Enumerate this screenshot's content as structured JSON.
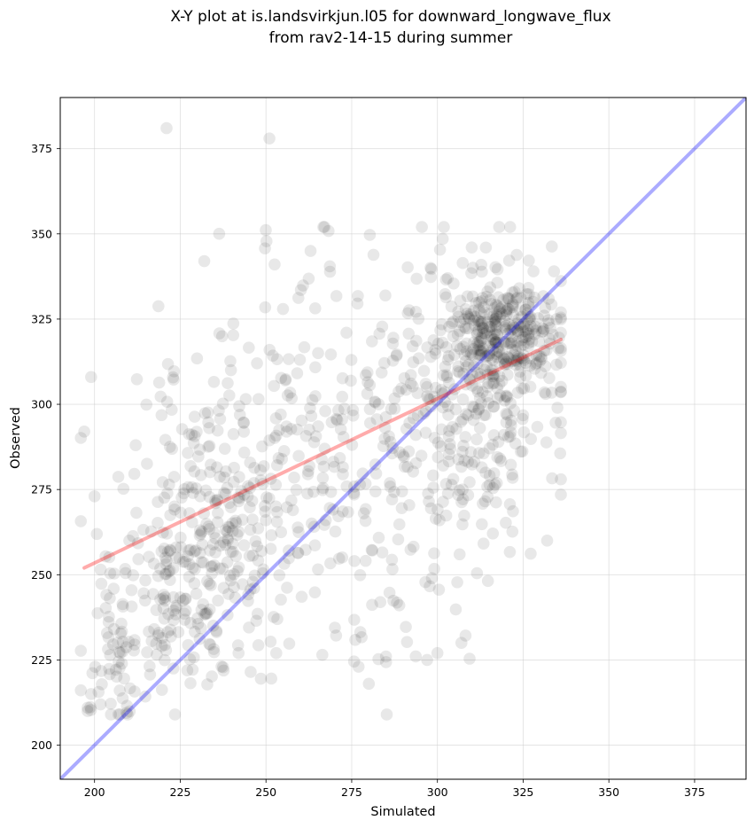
{
  "chart_data": {
    "type": "scatter",
    "title": "X-Y plot at is.landsvirkjun.l05 for downward_longwave_flux",
    "subtitle": "from rav2-14-15 during summer",
    "xlabel": "Simulated",
    "ylabel": "Observed",
    "xlim": [
      190,
      390
    ],
    "ylim": [
      190,
      390
    ],
    "xticks": [
      200,
      225,
      250,
      275,
      300,
      325,
      350,
      375
    ],
    "yticks": [
      200,
      225,
      250,
      275,
      300,
      325,
      350,
      375
    ],
    "grid": true,
    "point_color": "#000000",
    "one_to_one_line": {
      "x": [
        190,
        390
      ],
      "y": [
        190,
        390
      ],
      "color": "#0000ff"
    },
    "regression_line": {
      "x": [
        197,
        336
      ],
      "y": [
        252,
        319
      ],
      "color": "#ff0000"
    },
    "points_seed": 7,
    "clusters": [
      {
        "cx": 320,
        "cy": 320,
        "sx": 8,
        "sy": 8,
        "n": 280
      },
      {
        "cx": 312,
        "cy": 300,
        "sx": 12,
        "sy": 22,
        "n": 230
      },
      {
        "cx": 235,
        "cy": 265,
        "sx": 12,
        "sy": 24,
        "n": 280
      },
      {
        "cx": 275,
        "cy": 285,
        "sx": 20,
        "sy": 30,
        "n": 300
      },
      {
        "cx": 206,
        "cy": 232,
        "sx": 5,
        "sy": 14,
        "n": 70
      },
      {
        "cx": 222,
        "cy": 242,
        "sx": 4,
        "sy": 8,
        "n": 60
      }
    ],
    "highlighted_points": [
      [
        221,
        381
      ],
      [
        251,
        378
      ],
      [
        318,
        352
      ],
      [
        310,
        346
      ],
      [
        263,
        345
      ],
      [
        232,
        342
      ],
      [
        197,
        292
      ],
      [
        199,
        308
      ],
      [
        200,
        273
      ],
      [
        212,
        288
      ],
      [
        198,
        211
      ],
      [
        198,
        210
      ],
      [
        199,
        215
      ],
      [
        280,
        218
      ],
      [
        285,
        226
      ],
      [
        277,
        223
      ],
      [
        297,
        225
      ],
      [
        307,
        230
      ],
      [
        332,
        260
      ],
      [
        336,
        278
      ],
      [
        300,
        227
      ],
      [
        242,
        227
      ],
      [
        253,
        227
      ],
      [
        335,
        299
      ],
      [
        298,
        340
      ],
      [
        303,
        337
      ],
      [
        328,
        339
      ],
      [
        334,
        339
      ]
    ]
  }
}
